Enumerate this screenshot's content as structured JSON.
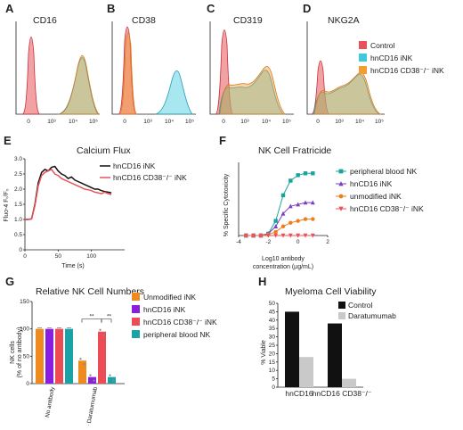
{
  "panels": {
    "A": {
      "letter": "A",
      "title": "CD16",
      "ticks": [
        "0",
        "10³",
        "10⁴",
        "10⁵"
      ]
    },
    "B": {
      "letter": "B",
      "title": "CD38",
      "ticks": [
        "0",
        "10³",
        "10⁴",
        "10⁵"
      ]
    },
    "C": {
      "letter": "C",
      "title": "CD319",
      "ticks": [
        "0",
        "10³",
        "10⁴",
        "10⁵"
      ]
    },
    "D": {
      "letter": "D",
      "title": "NKG2A",
      "ticks": [
        "0",
        "10³",
        "10⁴",
        "10⁵"
      ]
    },
    "E": {
      "letter": "E"
    },
    "F": {
      "letter": "F"
    },
    "G": {
      "letter": "G"
    },
    "H": {
      "letter": "H"
    }
  },
  "legend_top": [
    {
      "label": "Control",
      "color": "#e8535b"
    },
    {
      "label": "hnCD16 iNK",
      "color": "#3ec9dd"
    },
    {
      "label": "hnCD16 CD38⁻/⁻ iNK",
      "color": "#f39c32"
    }
  ],
  "chart_data": [
    {
      "panel": "E",
      "type": "line",
      "title": "Calcium Flux",
      "xlabel": "Time (s)",
      "ylabel": "Fluo-4 Fₜ/F₀",
      "xlim": [
        0,
        150
      ],
      "ylim": [
        0,
        3.0
      ],
      "xticks": [
        "0",
        "50",
        "100"
      ],
      "yticks": [
        "0",
        "0.5",
        "1.0",
        "1.5",
        "2.0",
        "2.5",
        "3.0"
      ],
      "series": [
        {
          "name": "hnCD16 iNK",
          "color": "#111111",
          "x": [
            0,
            5,
            10,
            15,
            20,
            25,
            30,
            35,
            40,
            45,
            50,
            55,
            60,
            65,
            70,
            75,
            80,
            85,
            90,
            95,
            100,
            105,
            110,
            115,
            120,
            125,
            130
          ],
          "y": [
            1.0,
            1.0,
            1.02,
            1.5,
            2.2,
            2.55,
            2.65,
            2.6,
            2.72,
            2.75,
            2.6,
            2.5,
            2.45,
            2.35,
            2.4,
            2.3,
            2.25,
            2.2,
            2.15,
            2.1,
            2.05,
            2.0,
            2.0,
            1.95,
            1.92,
            1.9,
            1.88
          ]
        },
        {
          "name": "hnCD16 CD38⁻/⁻ iNK",
          "color": "#e8535b",
          "x": [
            0,
            5,
            10,
            15,
            20,
            25,
            30,
            35,
            40,
            45,
            50,
            55,
            60,
            65,
            70,
            75,
            80,
            85,
            90,
            95,
            100,
            105,
            110,
            115,
            120,
            125,
            130
          ],
          "y": [
            1.0,
            1.0,
            1.02,
            1.45,
            2.1,
            2.45,
            2.55,
            2.6,
            2.65,
            2.5,
            2.45,
            2.35,
            2.3,
            2.25,
            2.2,
            2.15,
            2.1,
            2.05,
            2.0,
            1.98,
            1.95,
            1.9,
            1.88,
            1.85,
            1.9,
            1.85,
            1.82
          ]
        }
      ]
    },
    {
      "panel": "F",
      "type": "line",
      "title": "NK Cell Fratricide",
      "xlabel": "Log10 antibody concentration (µg/mL)",
      "ylabel": "% Specific Cytotoxicity",
      "xlim": [
        -4,
        2
      ],
      "ylim": [
        0,
        40
      ],
      "xticks": [
        "-4",
        "-2",
        "0",
        "2"
      ],
      "series": [
        {
          "name": "peripheral blood NK",
          "color": "#1aa39b",
          "marker": "square",
          "x": [
            -3.5,
            -3,
            -2.5,
            -2,
            -1.5,
            -1,
            -0.5,
            0,
            0.5,
            1
          ],
          "y": [
            0,
            0,
            0,
            1,
            8,
            22,
            30,
            33,
            34,
            34
          ]
        },
        {
          "name": "hnCD16 iNK",
          "color": "#7b3fbf",
          "marker": "triangle",
          "x": [
            -3.5,
            -3,
            -2.5,
            -2,
            -1.5,
            -1,
            -0.5,
            0,
            0.5,
            1
          ],
          "y": [
            0,
            0,
            0,
            1,
            5,
            12,
            16,
            17,
            18,
            18
          ]
        },
        {
          "name": "unmodified iNK",
          "color": "#ef7d1a",
          "marker": "circle",
          "x": [
            -3.5,
            -3,
            -2.5,
            -2,
            -1.5,
            -1,
            -0.5,
            0,
            0.5,
            1
          ],
          "y": [
            0,
            0,
            0,
            0.5,
            2,
            5,
            7,
            8,
            9,
            9
          ]
        },
        {
          "name": "hnCD16 CD38⁻/⁻ iNK",
          "color": "#e8535b",
          "marker": "triangle-down",
          "x": [
            -3.5,
            -3,
            -2.5,
            -2,
            -1.5,
            -1,
            -0.5,
            0,
            0.5,
            1
          ],
          "y": [
            0,
            0,
            0,
            0,
            0,
            0,
            0,
            0,
            0,
            0
          ]
        }
      ]
    },
    {
      "panel": "G",
      "type": "bar",
      "title": "Relative NK Cell Numbers",
      "ylabel": "NK cells (% of no antibody)",
      "ylim": [
        0,
        150
      ],
      "yticks": [
        "0",
        "50",
        "100",
        "150"
      ],
      "categories": [
        "No antibody",
        "+ Daratumumab"
      ],
      "significance": [
        "**",
        "**"
      ],
      "series": [
        {
          "name": "Unmodified iNK",
          "color": "#ef8a1e",
          "values": [
            100,
            42
          ]
        },
        {
          "name": "hnCD16 iNK",
          "color": "#8a1ee0",
          "values": [
            100,
            12
          ]
        },
        {
          "name": "hnCD16 CD38⁻/⁻ iNK",
          "color": "#ee4c55",
          "values": [
            100,
            95
          ]
        },
        {
          "name": "peripheral blood NK",
          "color": "#1aa3a6",
          "values": [
            100,
            12
          ]
        }
      ]
    },
    {
      "panel": "H",
      "type": "bar",
      "title": "Myeloma Cell Viability",
      "ylabel": "% Viable",
      "ylim": [
        0,
        50
      ],
      "yticks": [
        "0",
        "5",
        "10",
        "15",
        "20",
        "25",
        "30",
        "35",
        "40",
        "45",
        "50"
      ],
      "categories": [
        "hnCD16",
        "hnCD16 CD38⁻/⁻"
      ],
      "series": [
        {
          "name": "Control",
          "color": "#111111",
          "values": [
            45,
            38
          ]
        },
        {
          "name": "Daratumumab",
          "color": "#c9c9c9",
          "values": [
            18,
            5
          ]
        }
      ]
    }
  ]
}
